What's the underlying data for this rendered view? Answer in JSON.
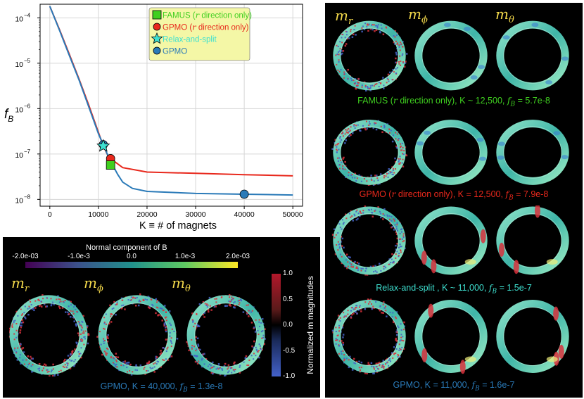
{
  "chart_data": {
    "type": "line",
    "y_scale": "log",
    "xlim": [
      -2000,
      52000
    ],
    "ylim_exponents": [
      -8.15,
      -3.7
    ],
    "x_ticks": [
      "0",
      "10000",
      "20000",
      "30000",
      "40000",
      "50000"
    ],
    "y_ticks": [
      "10",
      "10",
      "10",
      "10",
      "10"
    ],
    "y_tick_exponents": [
      "−4",
      "−5",
      "−6",
      "−7",
      "−8"
    ],
    "ylabel": "f",
    "ylabel_sub": "B",
    "xlabel": "K ≡ # of magnets",
    "grid": true,
    "legend_position": "top-right",
    "series": [
      {
        "name": "FAMUS (r direction only)",
        "color": "#3fcf1f",
        "marker": "square",
        "points": [
          [
            12500,
            5.7e-08
          ]
        ]
      },
      {
        "name": "GPMO (r direction only)",
        "color": "#e8281c",
        "marker": "circle",
        "curve": [
          [
            0,
            0.00018
          ],
          [
            2000,
            5.5e-05
          ],
          [
            4000,
            1.6e-05
          ],
          [
            6000,
            4.5e-06
          ],
          [
            8000,
            1.2e-06
          ],
          [
            10000,
            3e-07
          ],
          [
            11000,
            1.5e-07
          ],
          [
            12000,
            9e-08
          ],
          [
            12500,
            7.9e-08
          ],
          [
            15000,
            5e-08
          ],
          [
            20000,
            4e-08
          ],
          [
            30000,
            3.75e-08
          ],
          [
            40000,
            3.5e-08
          ],
          [
            50000,
            3.3e-08
          ]
        ],
        "points": [
          [
            12500,
            7.9e-08
          ]
        ]
      },
      {
        "name": "Relax-and-split",
        "color": "#3ee0d0",
        "marker": "star",
        "points": [
          [
            11000,
            1.5e-07
          ]
        ]
      },
      {
        "name": "GPMO",
        "color": "#2a7ab8",
        "marker": "circle",
        "curve": [
          [
            0,
            0.00018
          ],
          [
            2000,
            5.3e-05
          ],
          [
            4000,
            1.5e-05
          ],
          [
            6000,
            4.3e-06
          ],
          [
            8000,
            1.1e-06
          ],
          [
            10000,
            2.8e-07
          ],
          [
            11000,
            1.6e-07
          ],
          [
            12000,
            9e-08
          ],
          [
            13000,
            5.5e-08
          ],
          [
            14000,
            3.5e-08
          ],
          [
            15000,
            2.4e-08
          ],
          [
            17000,
            1.75e-08
          ],
          [
            20000,
            1.5e-08
          ],
          [
            30000,
            1.35e-08
          ],
          [
            40000,
            1.3e-08
          ],
          [
            50000,
            1.25e-08
          ]
        ],
        "points": [
          [
            11000,
            1.6e-07
          ],
          [
            40000,
            1.3e-08
          ]
        ]
      }
    ]
  },
  "colorbar_normal": {
    "title": "Normal component of B",
    "ticks": [
      "-2.0e-03",
      "-1.0e-3",
      "0.0",
      "1.0e-3",
      "2.0e-03"
    ]
  },
  "colorbar_magnitude": {
    "label": "Normalized m magnitudes",
    "ticks": [
      "1.0",
      "0.5",
      "0.0",
      "-0.5",
      "-1.0"
    ]
  },
  "component_labels": {
    "r": "r",
    "phi": "ϕ",
    "theta": "θ",
    "m": "m"
  },
  "captions": {
    "famus": {
      "prefix": "FAMUS (",
      "italic": "r",
      "suffix": " direction only), K ~ 12,500, ",
      "fb": "f",
      "fb_sub": "B",
      "value": " = 5.7e-8",
      "color": "#3fcf1f"
    },
    "gpmo_r": {
      "prefix": "GPMO (",
      "italic": "r",
      "suffix": " direction only), K = 12,500, ",
      "fb": "f",
      "fb_sub": "B",
      "value": " = 7.9e-8",
      "color": "#e8281c"
    },
    "relax": {
      "prefix": "Relax-and-split , K ~ 11,000, ",
      "fb": "f",
      "fb_sub": "B",
      "value": " = 1.5e-7",
      "color": "#3ee0d0"
    },
    "gpmo_11k": {
      "prefix": "GPMO, K = 11,000, ",
      "fb": "f",
      "fb_sub": "B",
      "value": " = 1.6e-7",
      "color": "#2a7ab8"
    },
    "gpmo_40k": {
      "prefix": "GPMO, K = 40,000, ",
      "fb": "f",
      "fb_sub": "B",
      "value": " = 1.3e-8",
      "color": "#2a7ab8"
    }
  }
}
